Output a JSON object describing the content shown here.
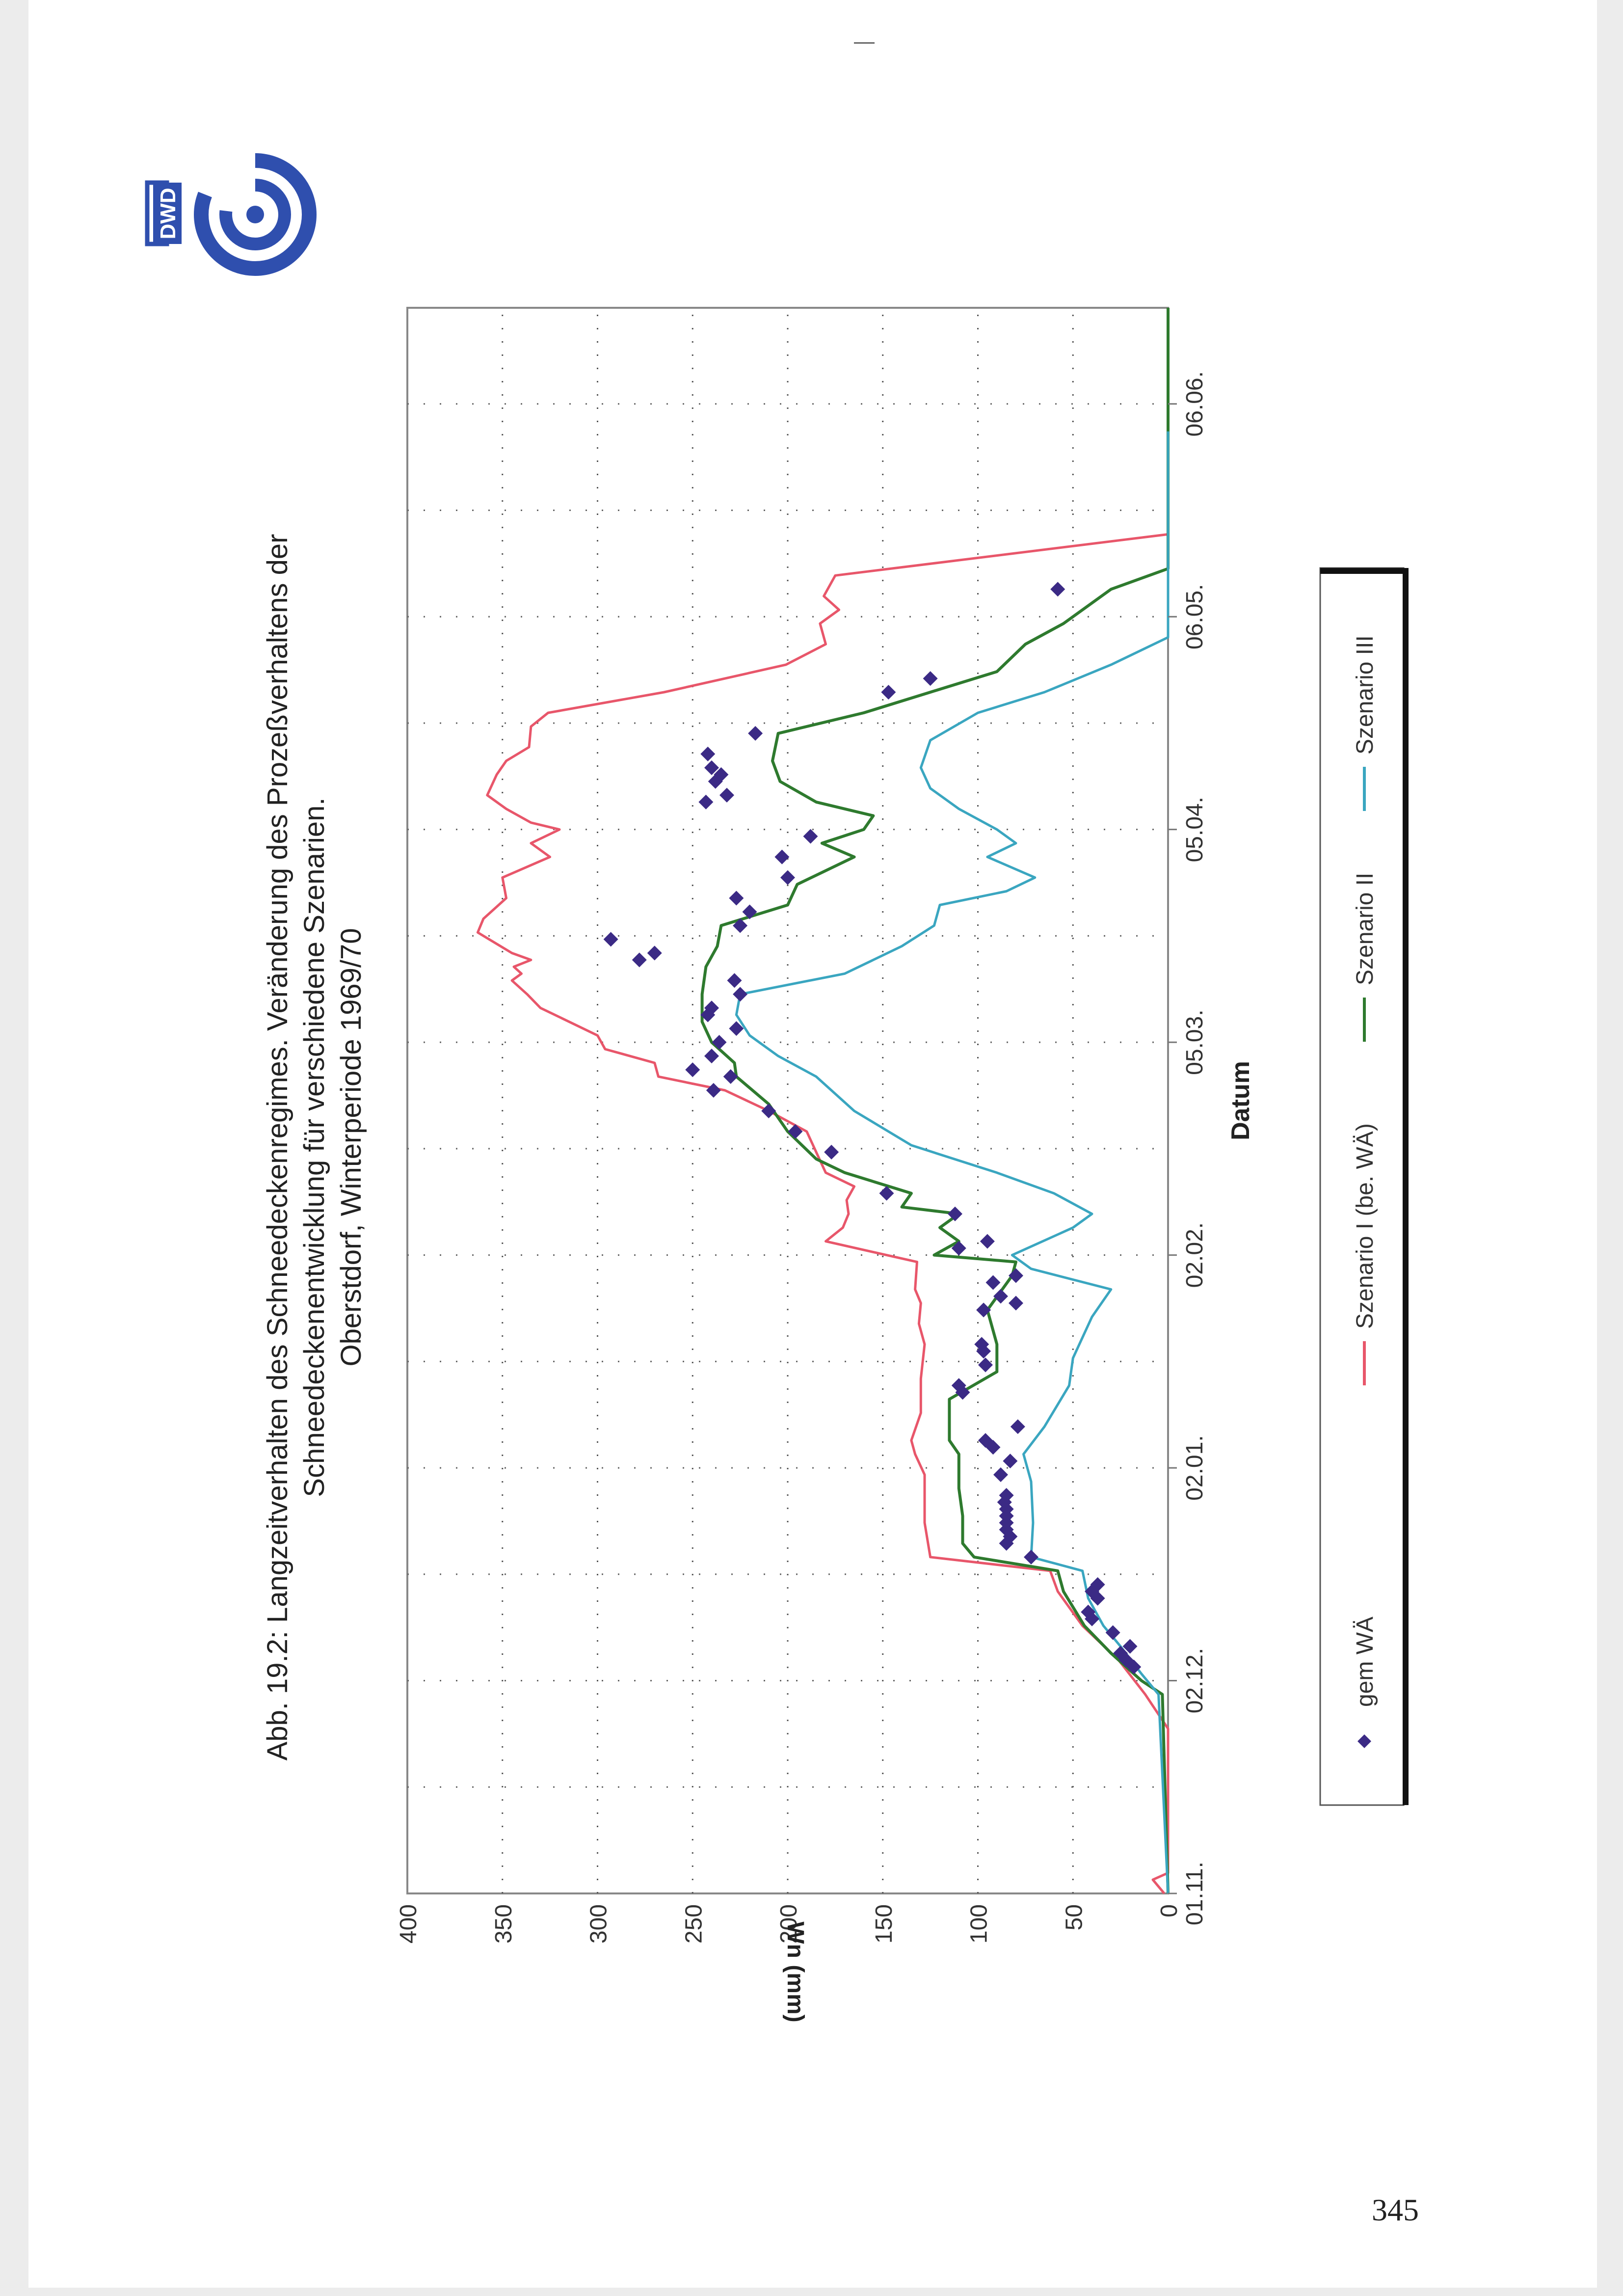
{
  "figure": {
    "title_lines": [
      "Abb. 19.2: Langzeitverhalten des Schneedeckenregimes. Veränderung des Prozeßverhaltens der",
      "Schneedeckenentwicklung für verschiedene Szenarien.",
      "Oberstdorf, Winterperiode 1969/70"
    ],
    "logo_text": "DWD",
    "page_number": "345"
  },
  "colors": {
    "gem_wa": "#3b2a85",
    "szenario_1": "#e8566a",
    "szenario_2": "#2e7a2e",
    "szenario_3": "#3aa6c0",
    "logo": "#2f4fae"
  },
  "chart_data": {
    "type": "line",
    "title": "Abb. 19.2: Langzeitverhalten des Schneedeckenregimes. Veränderung des Prozeßverhaltens der Schneedeckenentwicklung für verschiedene Szenarien. Oberstdorf, Winterperiode 1969/70",
    "xlabel": "Datum",
    "ylabel": "Wn (mm)",
    "x_range": [
      "1969-11-01",
      "1970-06-20"
    ],
    "ylim": [
      0,
      400
    ],
    "y_ticks": [
      0,
      50,
      100,
      150,
      200,
      250,
      300,
      350,
      400
    ],
    "x_ticks": [
      {
        "date": "1969-11-01",
        "label": "01.11."
      },
      {
        "date": "1969-12-02",
        "label": "02.12."
      },
      {
        "date": "1970-01-02",
        "label": "02.01."
      },
      {
        "date": "1970-02-02",
        "label": "02.02."
      },
      {
        "date": "1970-03-05",
        "label": "05.03."
      },
      {
        "date": "1970-04-05",
        "label": "05.04."
      },
      {
        "date": "1970-05-06",
        "label": "06.05."
      },
      {
        "date": "1970-06-06",
        "label": "06.06."
      }
    ],
    "grid": true,
    "legend_position": "bottom",
    "series": [
      {
        "name": "gem WÄ",
        "style": "markers",
        "points": [
          [
            "1969-12-04",
            18
          ],
          [
            "1969-12-05",
            22
          ],
          [
            "1969-12-06",
            25
          ],
          [
            "1969-12-07",
            20
          ],
          [
            "1969-12-09",
            29
          ],
          [
            "1969-12-11",
            40
          ],
          [
            "1969-12-12",
            42
          ],
          [
            "1969-12-14",
            37
          ],
          [
            "1969-12-15",
            40
          ],
          [
            "1969-12-16",
            37
          ],
          [
            "1969-12-20",
            72
          ],
          [
            "1969-12-22",
            85
          ],
          [
            "1969-12-23",
            83
          ],
          [
            "1969-12-24",
            85
          ],
          [
            "1969-12-25",
            85
          ],
          [
            "1969-12-26",
            85
          ],
          [
            "1969-12-27",
            85
          ],
          [
            "1969-12-28",
            86
          ],
          [
            "1969-12-29",
            85
          ],
          [
            "1970-01-01",
            88
          ],
          [
            "1970-01-03",
            83
          ],
          [
            "1970-01-05",
            92
          ],
          [
            "1970-01-06",
            96
          ],
          [
            "1970-01-08",
            79
          ],
          [
            "1970-01-13",
            108
          ],
          [
            "1970-01-14",
            110
          ],
          [
            "1970-01-17",
            96
          ],
          [
            "1970-01-19",
            97
          ],
          [
            "1970-01-20",
            98
          ],
          [
            "1970-01-25",
            97
          ],
          [
            "1970-01-26",
            80
          ],
          [
            "1970-01-27",
            88
          ],
          [
            "1970-01-29",
            92
          ],
          [
            "1970-01-30",
            80
          ],
          [
            "1970-02-03",
            110
          ],
          [
            "1970-02-04",
            95
          ],
          [
            "1970-02-08",
            112
          ],
          [
            "1970-02-11",
            148
          ],
          [
            "1970-02-17",
            177
          ],
          [
            "1970-02-20",
            196
          ],
          [
            "1970-02-23",
            210
          ],
          [
            "1970-02-26",
            239
          ],
          [
            "1970-02-28",
            230
          ],
          [
            "1970-03-01",
            250
          ],
          [
            "1970-03-03",
            240
          ],
          [
            "1970-03-05",
            236
          ],
          [
            "1970-03-07",
            227
          ],
          [
            "1970-03-09",
            242
          ],
          [
            "1970-03-10",
            240
          ],
          [
            "1970-03-12",
            225
          ],
          [
            "1970-03-14",
            228
          ],
          [
            "1970-03-17",
            278
          ],
          [
            "1970-03-18",
            270
          ],
          [
            "1970-03-20",
            293
          ],
          [
            "1970-03-22",
            225
          ],
          [
            "1970-03-24",
            220
          ],
          [
            "1970-03-26",
            227
          ],
          [
            "1970-03-29",
            200
          ],
          [
            "1970-04-01",
            203
          ],
          [
            "1970-04-04",
            188
          ],
          [
            "1970-04-09",
            243
          ],
          [
            "1970-04-10",
            232
          ],
          [
            "1970-04-12",
            238
          ],
          [
            "1970-04-13",
            235
          ],
          [
            "1970-04-14",
            240
          ],
          [
            "1970-04-16",
            242
          ],
          [
            "1970-04-19",
            217
          ],
          [
            "1970-04-25",
            147
          ],
          [
            "1970-04-27",
            125
          ],
          [
            "1970-05-10",
            58
          ]
        ]
      },
      {
        "name": "Szenario I (be. WÄ)",
        "points": [
          [
            "1969-11-01",
            2
          ],
          [
            "1969-11-03",
            8
          ],
          [
            "1969-11-04",
            0
          ],
          [
            "1969-11-20",
            0
          ],
          [
            "1969-11-25",
            0
          ],
          [
            "1969-11-30",
            12
          ],
          [
            "1969-12-05",
            26
          ],
          [
            "1969-12-10",
            45
          ],
          [
            "1969-12-15",
            58
          ],
          [
            "1969-12-18",
            62
          ],
          [
            "1969-12-20",
            125
          ],
          [
            "1969-12-25",
            128
          ],
          [
            "1970-01-01",
            128
          ],
          [
            "1970-01-04",
            133
          ],
          [
            "1970-01-06",
            135
          ],
          [
            "1970-01-10",
            130
          ],
          [
            "1970-01-15",
            130
          ],
          [
            "1970-01-20",
            128
          ],
          [
            "1970-01-23",
            131
          ],
          [
            "1970-01-26",
            130
          ],
          [
            "1970-01-28",
            133
          ],
          [
            "1970-02-01",
            132
          ],
          [
            "1970-02-04",
            180
          ],
          [
            "1970-02-06",
            171
          ],
          [
            "1970-02-08",
            168
          ],
          [
            "1970-02-10",
            169
          ],
          [
            "1970-02-12",
            165
          ],
          [
            "1970-02-14",
            180
          ],
          [
            "1970-02-17",
            185
          ],
          [
            "1970-02-20",
            190
          ],
          [
            "1970-02-23",
            210
          ],
          [
            "1970-02-26",
            233
          ],
          [
            "1970-02-28",
            268
          ],
          [
            "1970-03-02",
            270
          ],
          [
            "1970-03-04",
            296
          ],
          [
            "1970-03-06",
            300
          ],
          [
            "1970-03-10",
            330
          ],
          [
            "1970-03-12",
            337
          ],
          [
            "1970-03-14",
            345
          ],
          [
            "1970-03-15",
            340
          ],
          [
            "1970-03-16",
            344
          ],
          [
            "1970-03-17",
            335
          ],
          [
            "1970-03-18",
            345
          ],
          [
            "1970-03-21",
            363
          ],
          [
            "1970-03-23",
            360
          ],
          [
            "1970-03-26",
            348
          ],
          [
            "1970-03-29",
            350
          ],
          [
            "1970-04-01",
            325
          ],
          [
            "1970-04-03",
            335
          ],
          [
            "1970-04-05",
            320
          ],
          [
            "1970-04-06",
            335
          ],
          [
            "1970-04-08",
            348
          ],
          [
            "1970-04-10",
            358
          ],
          [
            "1970-04-13",
            353
          ],
          [
            "1970-04-15",
            348
          ],
          [
            "1970-04-17",
            336
          ],
          [
            "1970-04-20",
            335
          ],
          [
            "1970-04-22",
            326
          ],
          [
            "1970-04-25",
            265
          ],
          [
            "1970-04-29",
            201
          ],
          [
            "1970-05-02",
            180
          ],
          [
            "1970-05-05",
            183
          ],
          [
            "1970-05-07",
            173
          ],
          [
            "1970-05-09",
            181
          ],
          [
            "1970-05-12",
            175
          ],
          [
            "1970-05-18",
            0
          ],
          [
            "1970-06-20",
            0
          ]
        ]
      },
      {
        "name": "Szenario II",
        "points": [
          [
            "1969-11-01",
            0
          ],
          [
            "1969-11-30",
            3
          ],
          [
            "1969-12-02",
            14
          ],
          [
            "1969-12-06",
            30
          ],
          [
            "1969-12-10",
            44
          ],
          [
            "1969-12-15",
            55
          ],
          [
            "1969-12-18",
            58
          ],
          [
            "1969-12-20",
            102
          ],
          [
            "1969-12-22",
            108
          ],
          [
            "1969-12-26",
            108
          ],
          [
            "1969-12-30",
            110
          ],
          [
            "1970-01-04",
            110
          ],
          [
            "1970-01-06",
            115
          ],
          [
            "1970-01-12",
            115
          ],
          [
            "1970-01-16",
            90
          ],
          [
            "1970-01-20",
            90
          ],
          [
            "1970-01-25",
            95
          ],
          [
            "1970-01-30",
            82
          ],
          [
            "1970-02-01",
            80
          ],
          [
            "1970-02-02",
            123
          ],
          [
            "1970-02-04",
            110
          ],
          [
            "1970-02-06",
            120
          ],
          [
            "1970-02-08",
            110
          ],
          [
            "1970-02-09",
            140
          ],
          [
            "1970-02-11",
            135
          ],
          [
            "1970-02-14",
            170
          ],
          [
            "1970-02-16",
            185
          ],
          [
            "1970-02-20",
            200
          ],
          [
            "1970-02-24",
            210
          ],
          [
            "1970-02-28",
            227
          ],
          [
            "1970-03-02",
            228
          ],
          [
            "1970-03-05",
            240
          ],
          [
            "1970-03-08",
            245
          ],
          [
            "1970-03-12",
            245
          ],
          [
            "1970-03-16",
            243
          ],
          [
            "1970-03-19",
            237
          ],
          [
            "1970-03-22",
            235
          ],
          [
            "1970-03-25",
            200
          ],
          [
            "1970-03-28",
            195
          ],
          [
            "1970-04-01",
            165
          ],
          [
            "1970-04-03",
            182
          ],
          [
            "1970-04-05",
            160
          ],
          [
            "1970-04-07",
            155
          ],
          [
            "1970-04-09",
            185
          ],
          [
            "1970-04-12",
            204
          ],
          [
            "1970-04-15",
            208
          ],
          [
            "1970-04-19",
            205
          ],
          [
            "1970-04-22",
            160
          ],
          [
            "1970-04-25",
            125
          ],
          [
            "1970-04-28",
            90
          ],
          [
            "1970-05-02",
            75
          ],
          [
            "1970-05-05",
            55
          ],
          [
            "1970-05-10",
            30
          ],
          [
            "1970-05-13",
            0
          ],
          [
            "1970-06-20",
            0
          ]
        ]
      },
      {
        "name": "Szenario III",
        "points": [
          [
            "1969-11-01",
            0
          ],
          [
            "1969-11-30",
            5
          ],
          [
            "1969-12-03",
            14
          ],
          [
            "1969-12-07",
            25
          ],
          [
            "1969-12-10",
            34
          ],
          [
            "1969-12-14",
            42
          ],
          [
            "1969-12-18",
            45
          ],
          [
            "1969-12-20",
            72
          ],
          [
            "1969-12-25",
            71
          ],
          [
            "1969-12-31",
            72
          ],
          [
            "1970-01-04",
            76
          ],
          [
            "1970-01-08",
            65
          ],
          [
            "1970-01-14",
            52
          ],
          [
            "1970-01-18",
            50
          ],
          [
            "1970-01-24",
            40
          ],
          [
            "1970-01-28",
            30
          ],
          [
            "1970-01-31",
            72
          ],
          [
            "1970-02-02",
            82
          ],
          [
            "1970-02-06",
            50
          ],
          [
            "1970-02-08",
            40
          ],
          [
            "1970-02-11",
            60
          ],
          [
            "1970-02-14",
            90
          ],
          [
            "1970-02-18",
            135
          ],
          [
            "1970-02-23",
            165
          ],
          [
            "1970-02-28",
            185
          ],
          [
            "1970-03-03",
            205
          ],
          [
            "1970-03-06",
            220
          ],
          [
            "1970-03-09",
            227
          ],
          [
            "1970-03-12",
            225
          ],
          [
            "1970-03-15",
            170
          ],
          [
            "1970-03-19",
            140
          ],
          [
            "1970-03-22",
            123
          ],
          [
            "1970-03-25",
            120
          ],
          [
            "1970-03-27",
            85
          ],
          [
            "1970-03-29",
            70
          ],
          [
            "1970-04-01",
            95
          ],
          [
            "1970-04-03",
            80
          ],
          [
            "1970-04-05",
            90
          ],
          [
            "1970-04-08",
            110
          ],
          [
            "1970-04-11",
            125
          ],
          [
            "1970-04-14",
            130
          ],
          [
            "1970-04-18",
            125
          ],
          [
            "1970-04-22",
            100
          ],
          [
            "1970-04-25",
            65
          ],
          [
            "1970-04-29",
            30
          ],
          [
            "1970-05-03",
            0
          ],
          [
            "1970-05-21",
            0
          ],
          [
            "1970-05-28",
            0
          ],
          [
            "1970-06-02",
            0
          ]
        ]
      }
    ]
  }
}
